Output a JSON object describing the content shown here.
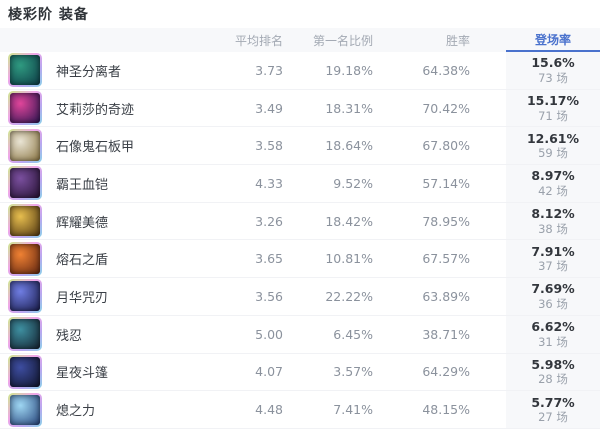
{
  "page": {
    "title": "棱彩阶 装备"
  },
  "table": {
    "columns": {
      "avg_rank": "平均排名",
      "first_rate": "第一名比例",
      "win_rate": "胜率",
      "pick_rate": "登场率"
    },
    "active_sort_column": "登场率",
    "colors": {
      "accent_blue": "#4a72cd",
      "column_highlight_bg": "#f7f8fa"
    },
    "rows": [
      {
        "name": "神圣分离者",
        "avg_rank": "3.73",
        "first_rate": "19.18%",
        "win_rate": "64.38%",
        "pick_rate": "15.6%",
        "games": "73 场",
        "icon": {
          "label": "item-icon",
          "c1": "#2f9a80",
          "c2": "#0c3a45"
        }
      },
      {
        "name": "艾莉莎的奇迹",
        "avg_rank": "3.49",
        "first_rate": "18.31%",
        "win_rate": "70.42%",
        "pick_rate": "15.17%",
        "games": "71 场",
        "icon": {
          "label": "item-icon",
          "c1": "#e0459a",
          "c2": "#281450"
        }
      },
      {
        "name": "石像鬼石板甲",
        "avg_rank": "3.58",
        "first_rate": "18.64%",
        "win_rate": "67.80%",
        "pick_rate": "12.61%",
        "games": "59 场",
        "icon": {
          "label": "item-icon",
          "c1": "#e9e4d4",
          "c2": "#8a7440"
        }
      },
      {
        "name": "霸王血铠",
        "avg_rank": "4.33",
        "first_rate": "9.52%",
        "win_rate": "57.14%",
        "pick_rate": "8.97%",
        "games": "42 场",
        "icon": {
          "label": "item-icon",
          "c1": "#7a4f9e",
          "c2": "#241030"
        }
      },
      {
        "name": "辉耀美德",
        "avg_rank": "3.26",
        "first_rate": "18.42%",
        "win_rate": "78.95%",
        "pick_rate": "8.12%",
        "games": "38 场",
        "icon": {
          "label": "item-icon",
          "c1": "#e6bd4e",
          "c2": "#4e3410"
        }
      },
      {
        "name": "熔石之盾",
        "avg_rank": "3.65",
        "first_rate": "10.81%",
        "win_rate": "67.57%",
        "pick_rate": "7.91%",
        "games": "37 场",
        "icon": {
          "label": "item-icon",
          "c1": "#ef8133",
          "c2": "#5e2410"
        }
      },
      {
        "name": "月华咒刃",
        "avg_rank": "3.56",
        "first_rate": "22.22%",
        "win_rate": "63.89%",
        "pick_rate": "7.69%",
        "games": "36 场",
        "icon": {
          "label": "item-icon",
          "c1": "#6f7de2",
          "c2": "#181a48"
        }
      },
      {
        "name": "残忍",
        "avg_rank": "5.00",
        "first_rate": "6.45%",
        "win_rate": "38.71%",
        "pick_rate": "6.62%",
        "games": "31 场",
        "icon": {
          "label": "item-icon",
          "c1": "#3e8fa0",
          "c2": "#131f2d"
        }
      },
      {
        "name": "星夜斗篷",
        "avg_rank": "4.07",
        "first_rate": "3.57%",
        "win_rate": "64.29%",
        "pick_rate": "5.98%",
        "games": "28 场",
        "icon": {
          "label": "item-icon",
          "c1": "#3d4da0",
          "c2": "#0f1328"
        }
      },
      {
        "name": "熄之力",
        "avg_rank": "4.48",
        "first_rate": "7.41%",
        "win_rate": "48.15%",
        "pick_rate": "5.77%",
        "games": "27 场",
        "icon": {
          "label": "item-icon",
          "c1": "#9ed6f2",
          "c2": "#234078"
        }
      }
    ]
  }
}
